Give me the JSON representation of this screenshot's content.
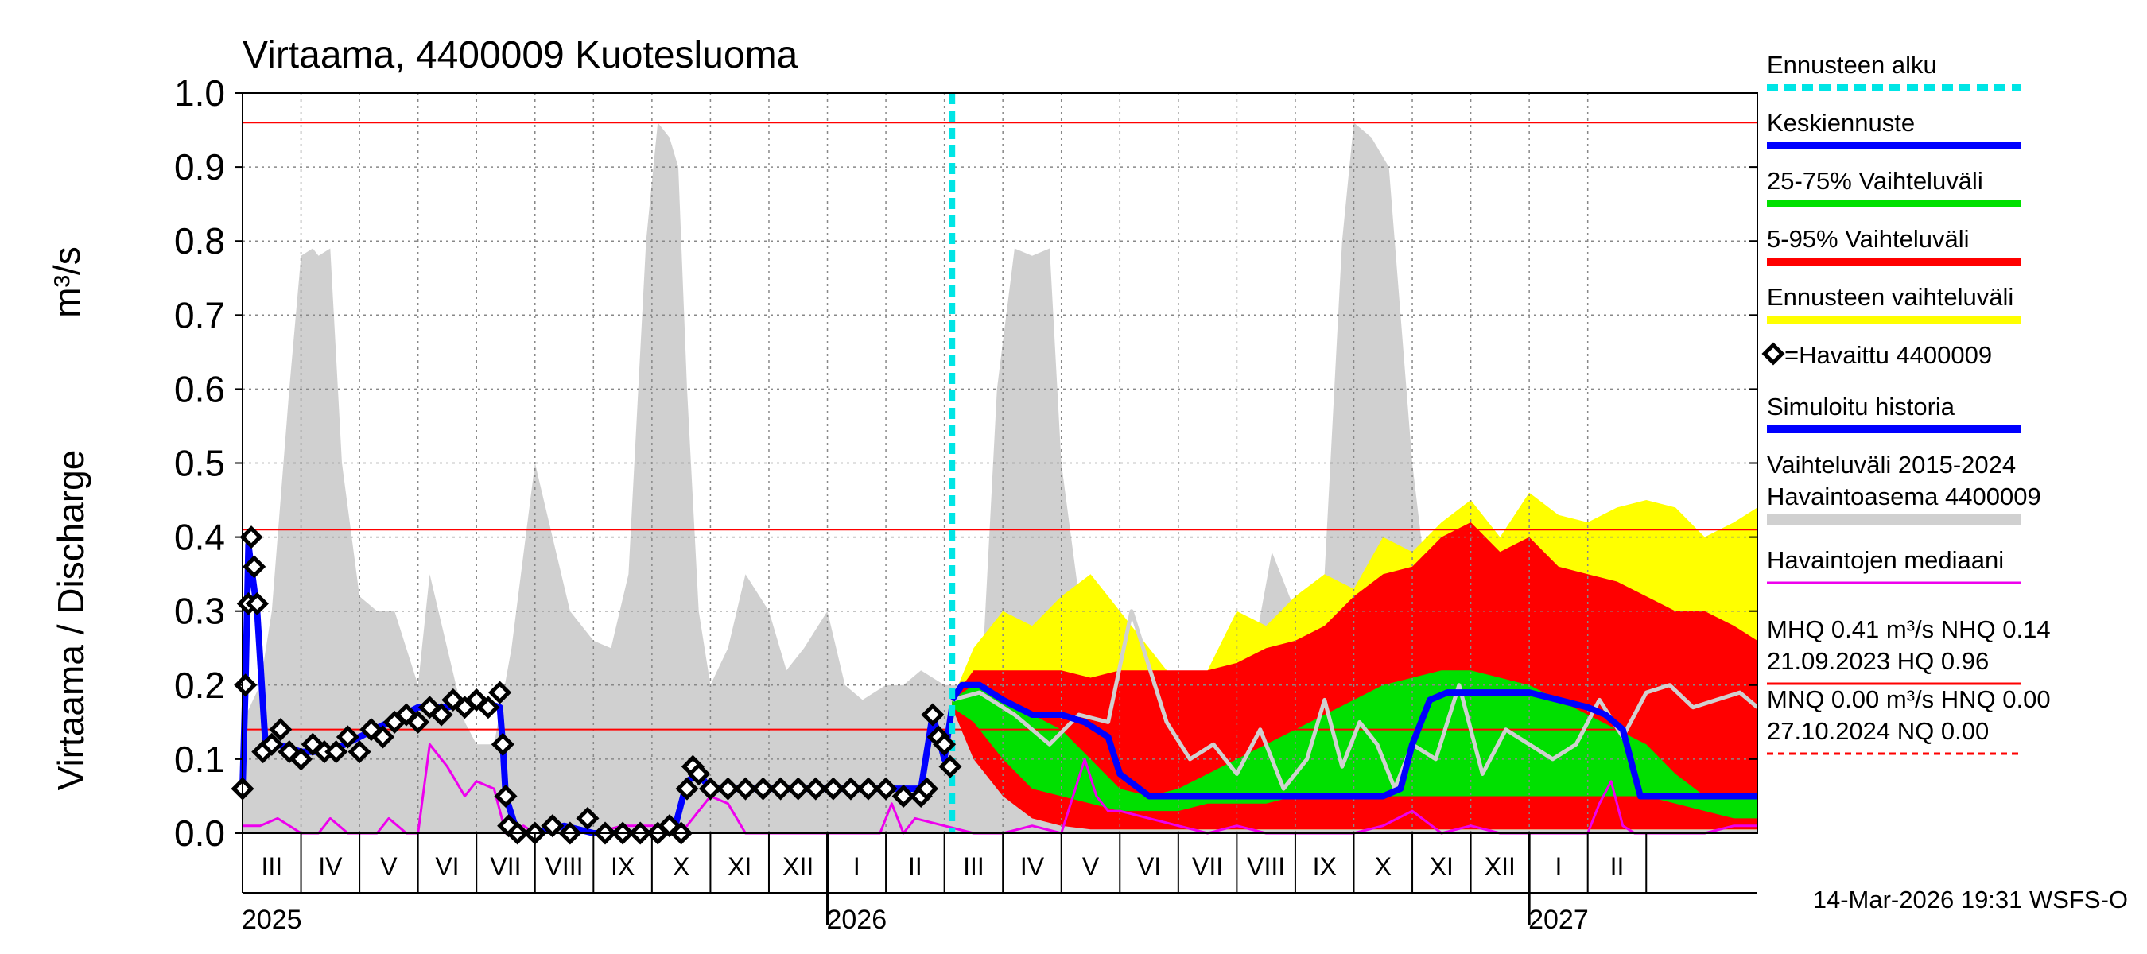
{
  "chart_data": {
    "type": "line",
    "title": "Virtaama, 4400009 Kuotesluoma",
    "ylabel": "Virtaama / Discharge",
    "yunit": "m³/s",
    "ylim": [
      0.0,
      1.0
    ],
    "yticks": [
      "0.0",
      "0.1",
      "0.2",
      "0.3",
      "0.4",
      "0.5",
      "0.6",
      "0.7",
      "0.8",
      "0.9",
      "1.0"
    ],
    "xlim_month": [
      2.0,
      27.9
    ],
    "month_labels": [
      "III",
      "IV",
      "V",
      "VI",
      "VII",
      "VIII",
      "IX",
      "X",
      "XI",
      "XII",
      "I",
      "II",
      "III",
      "IV",
      "V",
      "VI",
      "VII",
      "VIII",
      "IX",
      "X",
      "XI",
      "XII",
      "I",
      "II"
    ],
    "year_labels": [
      {
        "label": "2025",
        "month": 2.5
      },
      {
        "label": "2026",
        "month": 12.5
      },
      {
        "label": "2027",
        "month": 24.5
      }
    ],
    "forecast_start_month": 14.13,
    "reference_lines": [
      {
        "name": "HQ",
        "value": 0.96
      },
      {
        "name": "MHQ",
        "value": 0.41
      },
      {
        "name": "NHQ",
        "value": 0.14
      }
    ],
    "series": [
      {
        "name": "Vaihteluväli 2015-2024 (grey)",
        "color": "#d0d0d0",
        "x": [
          2.0,
          2.3,
          2.5,
          2.8,
          3.0,
          3.2,
          3.3,
          3.5,
          3.7,
          4.0,
          4.3,
          4.6,
          4.8,
          5.0,
          5.2,
          5.5,
          5.8,
          6.0,
          6.3,
          6.6,
          7.0,
          7.3,
          7.6,
          8.0,
          8.3,
          8.6,
          8.9,
          9.1,
          9.3,
          9.45,
          9.6,
          9.8,
          10.0,
          10.3,
          10.6,
          11.0,
          11.3,
          11.6,
          12.0,
          12.3,
          12.6,
          13.0,
          13.3,
          13.6,
          14.0,
          14.3,
          14.6,
          14.9,
          15.2,
          15.5,
          15.8,
          16.0,
          16.3,
          16.6,
          17.0,
          17.3,
          17.6,
          18.0,
          18.3,
          18.6,
          19.0,
          19.3,
          19.6,
          20.0,
          20.2,
          20.5,
          20.8,
          21.0,
          21.3,
          21.6,
          22.0,
          22.3,
          22.6,
          23.0,
          23.3,
          23.6,
          24.0,
          24.3,
          24.6,
          25.0,
          25.3,
          25.6,
          26.0,
          26.3,
          26.6,
          27.0,
          27.4,
          27.9
        ],
        "values": [
          0.15,
          0.2,
          0.3,
          0.6,
          0.78,
          0.79,
          0.78,
          0.79,
          0.5,
          0.32,
          0.3,
          0.3,
          0.25,
          0.2,
          0.35,
          0.25,
          0.15,
          0.12,
          0.12,
          0.25,
          0.5,
          0.4,
          0.3,
          0.26,
          0.25,
          0.35,
          0.8,
          0.96,
          0.94,
          0.9,
          0.6,
          0.3,
          0.2,
          0.25,
          0.35,
          0.3,
          0.22,
          0.25,
          0.3,
          0.2,
          0.18,
          0.2,
          0.2,
          0.22,
          0.2,
          0.2,
          0.15,
          0.6,
          0.79,
          0.78,
          0.79,
          0.5,
          0.32,
          0.3,
          0.3,
          0.25,
          0.2,
          0.15,
          0.15,
          0.12,
          0.12,
          0.25,
          0.38,
          0.3,
          0.27,
          0.35,
          0.8,
          0.96,
          0.94,
          0.9,
          0.5,
          0.3,
          0.22,
          0.25,
          0.3,
          0.22,
          0.25,
          0.3,
          0.2,
          0.18,
          0.2,
          0.2,
          0.22,
          0.2,
          0.2,
          0.15,
          0.18,
          0.2
        ]
      },
      {
        "name": "Ennusteen vaihteluväli",
        "color": "#ffff00",
        "x": [
          14.13,
          14.5,
          15.0,
          15.5,
          16.0,
          16.5,
          17.0,
          17.5,
          18.0,
          18.5,
          19.0,
          19.5,
          20.0,
          20.5,
          21.0,
          21.5,
          22.0,
          22.5,
          23.0,
          23.5,
          24.0,
          24.5,
          25.0,
          25.5,
          26.0,
          26.5,
          27.0,
          27.5,
          27.9
        ],
        "upper": [
          0.18,
          0.25,
          0.3,
          0.28,
          0.32,
          0.35,
          0.3,
          0.25,
          0.2,
          0.22,
          0.3,
          0.28,
          0.32,
          0.35,
          0.33,
          0.4,
          0.38,
          0.42,
          0.45,
          0.4,
          0.46,
          0.43,
          0.42,
          0.44,
          0.45,
          0.44,
          0.4,
          0.42,
          0.44
        ],
        "lower": [
          0.17,
          0.12,
          0.07,
          0.03,
          0.02,
          0.01,
          0.005,
          0.005,
          0.005,
          0.005,
          0.005,
          0.005,
          0.005,
          0.005,
          0.005,
          0.005,
          0.005,
          0.005,
          0.005,
          0.005,
          0.005,
          0.005,
          0.005,
          0.005,
          0.005,
          0.005,
          0.005,
          0.005,
          0.005
        ]
      },
      {
        "name": "5-95% Vaihteluväli",
        "color": "#ff0000",
        "x": [
          14.13,
          14.5,
          15.0,
          15.5,
          16.0,
          16.5,
          17.0,
          17.5,
          18.0,
          18.5,
          19.0,
          19.5,
          20.0,
          20.5,
          21.0,
          21.5,
          22.0,
          22.5,
          23.0,
          23.5,
          24.0,
          24.5,
          25.0,
          25.5,
          26.0,
          26.5,
          27.0,
          27.5,
          27.9
        ],
        "upper": [
          0.18,
          0.22,
          0.22,
          0.22,
          0.22,
          0.21,
          0.22,
          0.22,
          0.22,
          0.22,
          0.23,
          0.25,
          0.26,
          0.28,
          0.32,
          0.35,
          0.36,
          0.4,
          0.42,
          0.38,
          0.4,
          0.36,
          0.35,
          0.34,
          0.32,
          0.3,
          0.3,
          0.28,
          0.26
        ],
        "lower": [
          0.17,
          0.1,
          0.05,
          0.02,
          0.01,
          0.005,
          0.005,
          0.005,
          0.005,
          0.005,
          0.005,
          0.005,
          0.005,
          0.005,
          0.005,
          0.005,
          0.005,
          0.005,
          0.005,
          0.005,
          0.005,
          0.005,
          0.005,
          0.005,
          0.005,
          0.005,
          0.005,
          0.005,
          0.005
        ]
      },
      {
        "name": "25-75% Vaihteluväli",
        "color": "#00e000",
        "x": [
          14.13,
          14.5,
          15.0,
          15.5,
          16.0,
          16.5,
          17.0,
          17.5,
          18.0,
          18.5,
          19.0,
          19.5,
          20.0,
          20.5,
          21.0,
          21.5,
          22.0,
          22.5,
          23.0,
          23.5,
          24.0,
          24.5,
          25.0,
          25.5,
          26.0,
          26.5,
          27.0,
          27.5,
          27.9
        ],
        "upper": [
          0.18,
          0.2,
          0.18,
          0.16,
          0.14,
          0.1,
          0.06,
          0.05,
          0.06,
          0.08,
          0.1,
          0.12,
          0.14,
          0.16,
          0.18,
          0.2,
          0.21,
          0.22,
          0.22,
          0.21,
          0.2,
          0.18,
          0.16,
          0.14,
          0.12,
          0.08,
          0.05,
          0.05,
          0.05
        ],
        "lower": [
          0.17,
          0.15,
          0.1,
          0.06,
          0.05,
          0.04,
          0.03,
          0.03,
          0.03,
          0.04,
          0.04,
          0.04,
          0.05,
          0.05,
          0.05,
          0.05,
          0.05,
          0.05,
          0.05,
          0.05,
          0.05,
          0.05,
          0.05,
          0.05,
          0.05,
          0.04,
          0.03,
          0.02,
          0.02
        ]
      },
      {
        "name": "Keskiennuste",
        "color": "#0000ff",
        "x": [
          14.13,
          14.3,
          14.6,
          15.0,
          15.5,
          16.0,
          16.4,
          16.8,
          17.0,
          17.5,
          18.0,
          19.0,
          20.0,
          21.0,
          21.5,
          21.8,
          22.0,
          22.3,
          22.6,
          23.0,
          23.5,
          24.0,
          24.5,
          25.0,
          25.3,
          25.6,
          25.9,
          27.9
        ],
        "values": [
          0.18,
          0.2,
          0.2,
          0.18,
          0.16,
          0.16,
          0.15,
          0.13,
          0.08,
          0.05,
          0.05,
          0.05,
          0.05,
          0.05,
          0.05,
          0.06,
          0.12,
          0.18,
          0.19,
          0.19,
          0.19,
          0.19,
          0.18,
          0.17,
          0.16,
          0.14,
          0.05,
          0.05
        ]
      },
      {
        "name": "Simuloitu historia",
        "color": "#0000ff",
        "x": [
          2.0,
          2.05,
          2.1,
          2.15,
          2.25,
          2.4,
          2.6,
          3.0,
          3.5,
          4.0,
          4.5,
          5.0,
          5.5,
          6.0,
          6.4,
          6.45,
          6.5,
          6.7,
          7.0,
          7.5,
          8.0,
          8.5,
          9.0,
          9.4,
          9.6,
          9.8,
          10.0,
          11.0,
          12.0,
          13.0,
          13.6,
          13.8,
          14.0,
          14.13
        ],
        "values": [
          0.06,
          0.2,
          0.39,
          0.36,
          0.3,
          0.11,
          0.12,
          0.11,
          0.11,
          0.13,
          0.15,
          0.17,
          0.17,
          0.18,
          0.17,
          0.12,
          0.05,
          0.0,
          0.0,
          0.01,
          0.0,
          0.0,
          0.0,
          0.01,
          0.07,
          0.08,
          0.06,
          0.06,
          0.06,
          0.06,
          0.06,
          0.16,
          0.1,
          0.17
        ]
      },
      {
        "name": "Havaittu 4400009",
        "color": "#000000",
        "x": [
          2.0,
          2.05,
          2.1,
          2.15,
          2.2,
          2.25,
          2.35,
          2.5,
          2.65,
          2.8,
          3.0,
          3.2,
          3.4,
          3.6,
          3.8,
          4.0,
          4.2,
          4.4,
          4.6,
          4.8,
          5.0,
          5.2,
          5.4,
          5.6,
          5.8,
          6.0,
          6.2,
          6.4,
          6.45,
          6.5,
          6.55,
          6.7,
          7.0,
          7.3,
          7.6,
          7.9,
          8.2,
          8.5,
          8.8,
          9.1,
          9.3,
          9.5,
          9.6,
          9.7,
          9.8,
          10.0,
          10.3,
          10.6,
          10.9,
          11.2,
          11.5,
          11.8,
          12.1,
          12.4,
          12.7,
          13.0,
          13.3,
          13.6,
          13.7,
          13.8,
          13.9,
          14.0,
          14.1
        ],
        "values": [
          0.06,
          0.2,
          0.31,
          0.4,
          0.36,
          0.31,
          0.11,
          0.12,
          0.14,
          0.11,
          0.1,
          0.12,
          0.11,
          0.11,
          0.13,
          0.11,
          0.14,
          0.13,
          0.15,
          0.16,
          0.15,
          0.17,
          0.16,
          0.18,
          0.17,
          0.18,
          0.17,
          0.19,
          0.12,
          0.05,
          0.01,
          0.0,
          0.0,
          0.01,
          0.0,
          0.02,
          0.0,
          0.0,
          0.0,
          0.0,
          0.01,
          0.0,
          0.06,
          0.09,
          0.08,
          0.06,
          0.06,
          0.06,
          0.06,
          0.06,
          0.06,
          0.06,
          0.06,
          0.06,
          0.06,
          0.06,
          0.05,
          0.05,
          0.06,
          0.16,
          0.13,
          0.12,
          0.09
        ]
      },
      {
        "name": "Havaintojen mediaani",
        "color": "#ee00ee",
        "x": [
          2.0,
          2.3,
          2.6,
          3.0,
          3.3,
          3.5,
          3.8,
          4.0,
          4.3,
          4.5,
          4.8,
          5.0,
          5.2,
          5.5,
          5.8,
          6.0,
          6.3,
          6.5,
          6.8,
          7.0,
          7.5,
          8.0,
          8.5,
          9.0,
          9.5,
          9.8,
          10.0,
          10.3,
          10.6,
          11.0,
          11.5,
          12.0,
          12.5,
          12.9,
          13.1,
          13.3,
          13.5,
          14.0,
          14.5,
          15.0,
          15.5,
          16.0,
          16.2,
          16.4,
          16.6,
          16.8,
          17.0,
          17.5,
          18.0,
          18.5,
          19.0,
          19.5,
          20.0,
          20.5,
          21.0,
          21.5,
          22.0,
          22.5,
          23.0,
          23.5,
          24.0,
          24.5,
          25.0,
          25.2,
          25.4,
          25.6,
          25.8,
          26.0,
          26.5,
          27.0,
          27.5,
          27.9
        ],
        "values": [
          0.01,
          0.01,
          0.02,
          0.0,
          0.0,
          0.02,
          0.0,
          0.0,
          0.0,
          0.02,
          0.0,
          0.0,
          0.12,
          0.09,
          0.05,
          0.07,
          0.06,
          0.0,
          0.01,
          0.0,
          0.01,
          0.0,
          0.01,
          0.01,
          0.0,
          0.03,
          0.05,
          0.04,
          0.0,
          0.0,
          0.0,
          0.0,
          0.0,
          0.0,
          0.04,
          0.0,
          0.02,
          0.01,
          0.0,
          0.0,
          0.01,
          0.0,
          0.05,
          0.1,
          0.05,
          0.03,
          0.03,
          0.02,
          0.01,
          0.0,
          0.01,
          0.0,
          0.0,
          0.0,
          0.0,
          0.01,
          0.03,
          0.0,
          0.01,
          0.0,
          0.0,
          0.0,
          0.0,
          0.04,
          0.07,
          0.01,
          0.0,
          0.0,
          0.0,
          0.0,
          0.01,
          0.01
        ]
      },
      {
        "name": "Simuloitu historia (harmaa ennustejakso)",
        "color": "#d0d0d0",
        "x": [
          14.13,
          14.6,
          15.2,
          15.8,
          16.3,
          16.8,
          17.2,
          17.8,
          18.2,
          18.6,
          19.0,
          19.4,
          19.8,
          20.2,
          20.5,
          20.8,
          21.1,
          21.4,
          21.7,
          22.0,
          22.4,
          22.8,
          23.2,
          23.6,
          24.0,
          24.4,
          24.8,
          25.2,
          25.6,
          26.0,
          26.4,
          26.8,
          27.2,
          27.6,
          27.9
        ],
        "values": [
          0.18,
          0.19,
          0.16,
          0.12,
          0.16,
          0.15,
          0.3,
          0.15,
          0.1,
          0.12,
          0.08,
          0.14,
          0.06,
          0.1,
          0.18,
          0.09,
          0.15,
          0.12,
          0.06,
          0.12,
          0.1,
          0.2,
          0.08,
          0.14,
          0.12,
          0.1,
          0.12,
          0.18,
          0.13,
          0.19,
          0.2,
          0.17,
          0.18,
          0.19,
          0.17
        ]
      }
    ],
    "legend": {
      "placement": "right",
      "entries": [
        {
          "label": "Ennusteen alku",
          "color": "#00e5e5",
          "style": "dashed"
        },
        {
          "label": "Keskiennuste",
          "color": "#0000ff",
          "style": "solid"
        },
        {
          "label": "25-75% Vaihteluväli",
          "color": "#00e000",
          "style": "solid"
        },
        {
          "label": "5-95% Vaihteluväli",
          "color": "#ff0000",
          "style": "solid"
        },
        {
          "label": "Ennusteen vaihteluväli",
          "color": "#ffff00",
          "style": "solid"
        },
        {
          "label": "=Havaittu 4400009",
          "color": "#000000",
          "style": "marker"
        },
        {
          "label": "Simuloitu historia",
          "color": "#0000ff",
          "style": "solid"
        },
        {
          "label": "Vaihteluväli 2015-2024",
          "label2": "Havaintoasema 4400009",
          "color": "#d0d0d0",
          "style": "solid"
        },
        {
          "label": "Havaintojen mediaani",
          "color": "#ee00ee",
          "style": "thin"
        },
        {
          "label": "MHQ 0.41 m³/s NHQ 0.14",
          "label2": "21.09.2023 HQ 0.96",
          "color": "#ff0000",
          "style": "thin"
        },
        {
          "label": "MNQ 0.00 m³/s HNQ 0.00",
          "label2": "27.10.2024 NQ 0.00",
          "color": "#ff0000",
          "style": "dotted"
        }
      ]
    },
    "footer": "14-Mar-2026 19:31 WSFS-O"
  }
}
